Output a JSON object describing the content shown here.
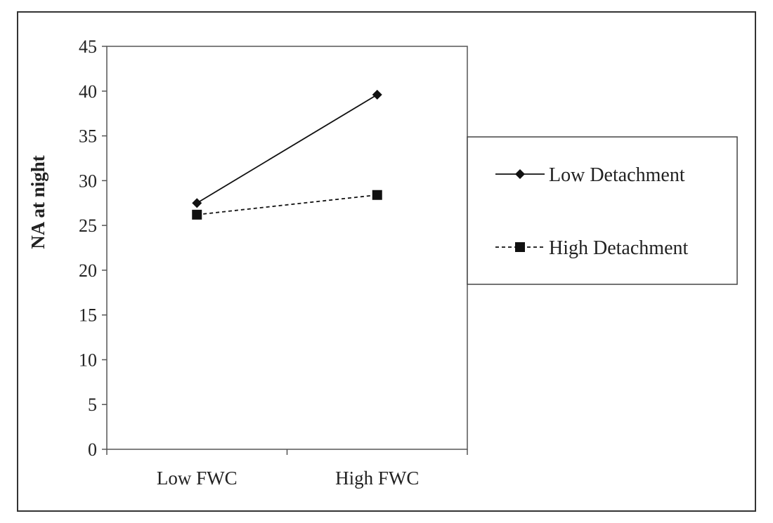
{
  "chart_data": {
    "type": "line",
    "title": "",
    "xlabel": "",
    "ylabel": "NA at night",
    "categories": [
      "Low FWC",
      "High FWC"
    ],
    "ylim": [
      0,
      45
    ],
    "yticks": [
      0,
      5,
      10,
      15,
      20,
      25,
      30,
      35,
      40,
      45
    ],
    "grid": false,
    "legend_position": "right",
    "series": [
      {
        "name": "Low Detachment",
        "values": [
          27.5,
          39.6
        ],
        "line_style": "solid",
        "marker": "diamond",
        "color": "#111111"
      },
      {
        "name": "High Detachment",
        "values": [
          26.2,
          28.4
        ],
        "line_style": "dashed",
        "marker": "square",
        "color": "#111111"
      }
    ]
  }
}
